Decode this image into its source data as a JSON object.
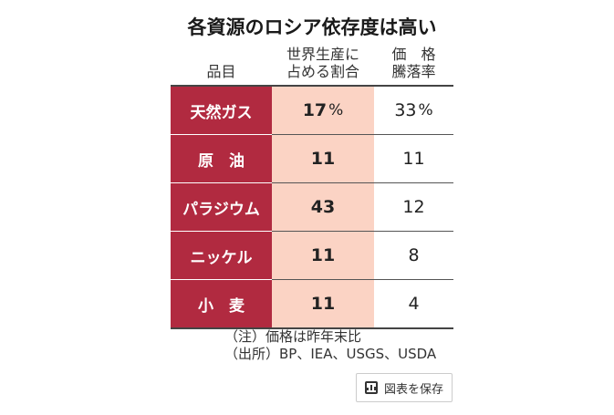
{
  "title": "各資源のロシア依存度は高い",
  "headers": {
    "item": "品目",
    "share_line1": "世界生産に",
    "share_line2": "占める割合",
    "price_line1": "価　格",
    "price_line2": "騰落率"
  },
  "rows": [
    {
      "item": "天然ガス",
      "share": "17",
      "share_unit": "%",
      "price": "33",
      "price_unit": "%"
    },
    {
      "item": "原　油",
      "share": "11",
      "share_unit": "",
      "price": "11",
      "price_unit": ""
    },
    {
      "item": "パラジウム",
      "share": "43",
      "share_unit": "",
      "price": "12",
      "price_unit": ""
    },
    {
      "item": "ニッケル",
      "share": "11",
      "share_unit": "",
      "price": "8",
      "price_unit": ""
    },
    {
      "item": "小　麦",
      "share": "11",
      "share_unit": "",
      "price": "4",
      "price_unit": ""
    }
  ],
  "notes": {
    "note": "（注）価格は昨年末比",
    "source": "（出所）BP、IEA、USGS、USDA"
  },
  "save_button": {
    "label": "図表を保存",
    "icon": "chart-icon"
  },
  "colors": {
    "item_bg": "#b12a40",
    "share_bg": "#fbd3c4"
  }
}
